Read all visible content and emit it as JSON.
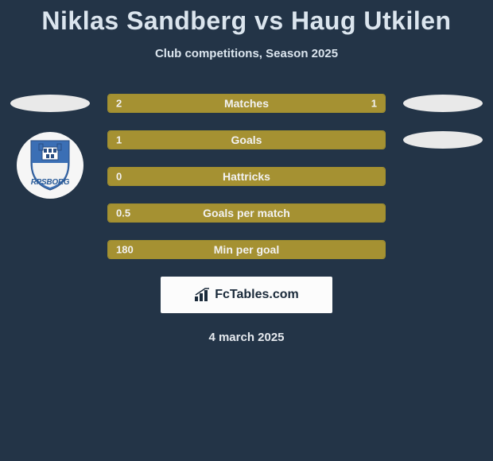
{
  "title": "Niklas Sandberg vs Haug Utkilen",
  "subtitle": "Club competitions, Season 2025",
  "date": "4 march 2025",
  "brand": "FcTables.com",
  "colors": {
    "background": "#233447",
    "bar_fill": "#a59132",
    "bar_border": "#a08f2f",
    "text_light": "#dbe5ee",
    "oval": "#e9e9e9",
    "logo_bg": "#fcfcfc",
    "crest_blue": "#3b6fb5"
  },
  "club_left": {
    "name_visible": "RPSBORG",
    "crest_color": "#3b6fb5"
  },
  "stats": [
    {
      "label": "Matches",
      "left_val": "2",
      "right_val": "1",
      "left_pct": 67,
      "right_pct": 33,
      "show_left_oval": true,
      "show_right_oval": true,
      "show_crest": false
    },
    {
      "label": "Goals",
      "left_val": "1",
      "right_val": "",
      "left_pct": 100,
      "right_pct": 0,
      "show_left_oval": false,
      "show_right_oval": true,
      "show_crest": true
    },
    {
      "label": "Hattricks",
      "left_val": "0",
      "right_val": "",
      "left_pct": 100,
      "right_pct": 0,
      "show_left_oval": false,
      "show_right_oval": false,
      "show_crest": false
    },
    {
      "label": "Goals per match",
      "left_val": "0.5",
      "right_val": "",
      "left_pct": 100,
      "right_pct": 0,
      "show_left_oval": false,
      "show_right_oval": false,
      "show_crest": false
    },
    {
      "label": "Min per goal",
      "left_val": "180",
      "right_val": "",
      "left_pct": 100,
      "right_pct": 0,
      "show_left_oval": false,
      "show_right_oval": false,
      "show_crest": false
    }
  ]
}
